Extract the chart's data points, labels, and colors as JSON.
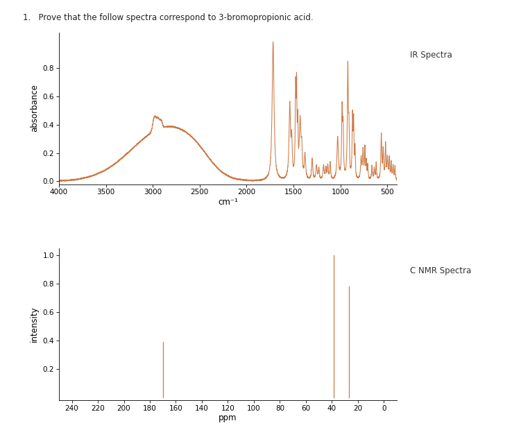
{
  "title": "1.   Prove that the follow spectra correspond to 3-bromopropionic acid.",
  "ir_label": "IR Spectra",
  "nmr_label": "C NMR Spectra",
  "ir_xlabel": "cm⁻¹",
  "nmr_xlabel": "ppm",
  "ir_ylabel": "absorbance",
  "nmr_ylabel": "intensity",
  "ir_xlim": [
    4000,
    400
  ],
  "ir_ylim": [
    -0.02,
    1.05
  ],
  "ir_yticks": [
    0,
    0.2,
    0.4,
    0.6,
    0.8
  ],
  "ir_xticks": [
    4000,
    3500,
    3000,
    2500,
    2000,
    1500,
    1000,
    500
  ],
  "nmr_xlim": [
    250,
    -10
  ],
  "nmr_ylim": [
    -0.02,
    1.05
  ],
  "nmr_yticks": [
    0.2,
    0.4,
    0.6,
    0.8,
    1.0
  ],
  "nmr_xticks": [
    240,
    220,
    200,
    180,
    160,
    140,
    120,
    100,
    80,
    60,
    40,
    20,
    0
  ],
  "line_color": "#cd7a45",
  "background_color": "#ffffff",
  "nmr_peaks": [
    {
      "ppm": 170.0,
      "intensity": 0.39
    },
    {
      "ppm": 38.5,
      "intensity": 1.0
    },
    {
      "ppm": 27.0,
      "intensity": 0.78
    }
  ]
}
